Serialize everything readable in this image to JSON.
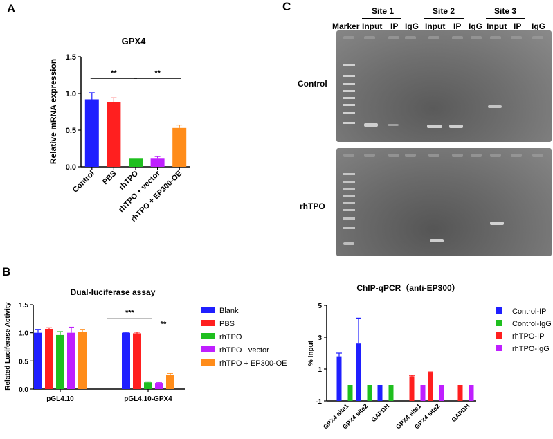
{
  "panel_labels": {
    "a": "A",
    "b": "B",
    "c": "C"
  },
  "chart_data": [
    {
      "panel": "A",
      "type": "bar",
      "title": "GPX4",
      "xlabel": "",
      "ylabel": "Relative mRNA expression",
      "ylim": [
        0,
        1.5
      ],
      "yticks": [
        "0.0",
        "0.5",
        "1.0",
        "1.5"
      ],
      "categories": [
        "Control",
        "PBS",
        "rhTPO",
        "rhTPO + vector",
        "rhTPO + EP300-OE"
      ],
      "values": [
        0.92,
        0.88,
        0.12,
        0.12,
        0.53
      ],
      "errors": [
        0.09,
        0.06,
        0.0,
        0.02,
        0.04
      ],
      "colors": [
        "#1f1fff",
        "#ff1f1f",
        "#1fbf1f",
        "#bf1fff",
        "#ff8c1a"
      ],
      "annotations": [
        {
          "text": "**",
          "from": 0,
          "to": 2,
          "y": 1.3
        },
        {
          "text": "**",
          "from": 2,
          "to": 4,
          "y": 1.3
        }
      ],
      "grid": false
    },
    {
      "panel": "B",
      "type": "bar",
      "title": "Dual-luciferase assay",
      "xlabel": "",
      "ylabel": "Related Luciferase Activity",
      "ylim": [
        0,
        1.5
      ],
      "yticks": [
        "0.0",
        "0.5",
        "1.0",
        "1.5"
      ],
      "categories": [
        "pGL4.10",
        "pGL4.10-GPX4"
      ],
      "series": [
        {
          "name": "Blank",
          "color": "#1f1fff",
          "values": [
            1.0,
            1.0
          ],
          "errors": [
            0.06,
            0.01
          ]
        },
        {
          "name": "PBS",
          "color": "#ff1f1f",
          "values": [
            1.07,
            0.99
          ],
          "errors": [
            0.02,
            0.02
          ]
        },
        {
          "name": "rhTPO",
          "color": "#1fbf1f",
          "values": [
            0.96,
            0.12
          ],
          "errors": [
            0.06,
            0.01
          ]
        },
        {
          "name": "rhTPO+ vector",
          "color": "#bf1fff",
          "values": [
            1.0,
            0.11
          ],
          "errors": [
            0.1,
            0.01
          ]
        },
        {
          "name": "rhTPO + EP300-OE",
          "color": "#ff8c1a",
          "values": [
            1.02,
            0.25
          ],
          "errors": [
            0.04,
            0.03
          ]
        }
      ],
      "annotations": [
        {
          "text": "***",
          "group": 1,
          "from": 0,
          "to": 2,
          "y": 1.35
        },
        {
          "text": "**",
          "group": 1,
          "from": 2,
          "to": 4,
          "y": 1.15
        }
      ],
      "legend_position": "right",
      "grid": false
    },
    {
      "panel": "B-right",
      "type": "bar",
      "title": "ChIP-qPCR（anti-EP300）",
      "xlabel": "",
      "ylabel": "% Input",
      "ylim": [
        -1,
        5
      ],
      "yticks": [
        "-1",
        "1",
        "3",
        "5"
      ],
      "categories": [
        "GPX4 site1",
        "GPX4 site2",
        "GAPDH",
        "GPX4 site1",
        "GPX4 site2",
        "GAPDH"
      ],
      "series": [
        {
          "name": "Control-IP",
          "color": "#1f1fff",
          "values": [
            1.8,
            2.6,
            0.0,
            null,
            null,
            null
          ],
          "errors": [
            0.2,
            1.6,
            0,
            null,
            null,
            null
          ]
        },
        {
          "name": "Control-IgG",
          "color": "#1fbf1f",
          "values": [
            0.0,
            0.0,
            0.0,
            null,
            null,
            null
          ],
          "errors": [
            0,
            0,
            0,
            null,
            null,
            null
          ]
        },
        {
          "name": "rhTPO-IP",
          "color": "#ff1f1f",
          "values": [
            null,
            null,
            null,
            0.55,
            0.8,
            0.0
          ],
          "errors": [
            null,
            null,
            null,
            0.05,
            0.02,
            0
          ]
        },
        {
          "name": "rhTPO-IgG",
          "color": "#bf1fff",
          "values": [
            null,
            null,
            null,
            0.0,
            0.0,
            0.0
          ],
          "errors": [
            null,
            null,
            null,
            0,
            0,
            0
          ]
        }
      ],
      "legend_position": "right",
      "grid": false
    }
  ],
  "gel": {
    "site_labels": [
      "Site 1",
      "Site 2",
      "Site 3"
    ],
    "lane_labels": [
      "Marker",
      "Input",
      "IP",
      "IgG",
      "Input",
      "IP",
      "IgG",
      "Input",
      "IP",
      "IgG"
    ],
    "row_labels": [
      "Control",
      "rhTPO"
    ]
  }
}
